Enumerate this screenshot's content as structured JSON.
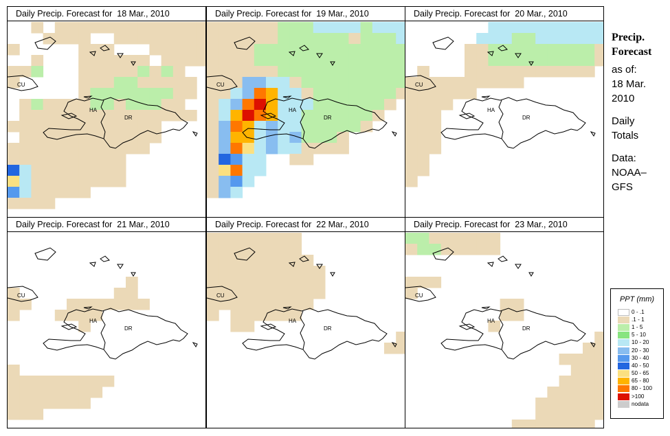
{
  "legend": {
    "title": "PPT (mm)",
    "items": [
      {
        "label": "0 - .1",
        "color": "#ffffff"
      },
      {
        "label": ".1 - 1",
        "color": "#ebd9b7"
      },
      {
        "label": "1 - 5",
        "color": "#bbeeaa"
      },
      {
        "label": "5 - 10",
        "color": "#88e480"
      },
      {
        "label": "10 - 20",
        "color": "#b8e8f4"
      },
      {
        "label": "20 - 30",
        "color": "#88bdf0"
      },
      {
        "label": "30 - 40",
        "color": "#5599ee"
      },
      {
        "label": "40 - 50",
        "color": "#2266e0"
      },
      {
        "label": "50 - 65",
        "color": "#fbe080"
      },
      {
        "label": "65 - 80",
        "color": "#ffb400"
      },
      {
        "label": "80 - 100",
        "color": "#ff7700"
      },
      {
        "label": ">100",
        "color": "#dd1100"
      },
      {
        "label": "nodata",
        "color": "#cccccc"
      }
    ]
  },
  "sidebar": {
    "heading_line1": "Precip.",
    "heading_line2": "Forecast",
    "asof_label": "as of:",
    "asof_date_line1": "18 Mar.",
    "asof_date_line2": "2010",
    "totals_line1": "Daily",
    "totals_line2": "Totals",
    "source_line1": "Data:",
    "source_line2": "NOAA–",
    "source_line3": "GFS"
  },
  "map_labels": {
    "cuba": "CU",
    "haiti": "HA",
    "dominican_republic": "DR"
  },
  "panels": [
    {
      "title": "Daily Precip. Forecast for  18 Mar., 2010",
      "grid": [
        "..1.1111111111111",
        "...1111..11111111",
        "1.....111...11111",
        "..1...111111.1111",
        "112...111112121..",
        "1.....1112211111.",
        "......1222222211.",
        ".12111122122211..",
        ".111111111111111.",
        "1111111111111....",
        ".111111111111....",
        "111111111111.....",
        "1111111111.......",
        "7411111111.......",
        "8411111111.......",
        "6411111..........",
        "1111.............",
        ".................."
      ]
    },
    {
      "title": "Daily Precip. Forecast for  19 Mar., 2010",
      "grid": [
        "11111122244442444",
        "11111122222212224",
        "11112222222222222",
        "11112222222222222",
        "11111122222222222",
        "11155441222222222",
        "1145A9441222222211",
        "145AB94442222221.",
        "149BA9442222221..",
        "15A94544222221...",
        "159945452221.....",
        "15A845441111.....",
        "17644..11........",
        "18A44............",
        "1564.............",
        "154..............",
        "..................",
        ".................."
      ]
    },
    {
      "title": "Daily Precip. Forecast for  20 Mar., 2010",
      "grid": [
        ".......4444444444",
        "......44422444444",
        ".....112222222221",
        ".....112222222221",
        ".1...11111111111.",
        "1111111111.......",
        "111111...........",
        "1111.............",
        "111..............",
        "111..............",
        "111..............",
        "111..............",
        "11...............",
        "11...............",
        "1................",
        "................",
        "..................",
        ".................."
      ]
    },
    {
      "title": "Daily Precip. Forecast for  21 Mar., 2010",
      "grid": [
        ".................",
        ".................",
        ".................",
        ".................",
        "..........1......",
        "1........11......",
        "11...1111111.....",
        "1...1111.........",
        "......1..........",
        ".................",
        ".................",
        ".................",
        "1................",
        "111111111........",
        "11111111.........",
        "1111111..........",
        "111..............",
        ".................."
      ]
    },
    {
      "title": "Daily Precip. Forecast for  22 Mar., 2010",
      "grid": [
        "11111111.........",
        "11111111.........",
        "111111111........",
        "1111111111.......",
        "1111111111.......",
        "1111111111.......",
        "111111111........",
        "1.111111.........",
        "..11.............",
        "................1",
        "...............11",
        ".................",
        ".................",
        ".................",
        ".................",
        ".................",
        "..................",
        ".................."
      ]
    },
    {
      "title": "Daily Precip. Forecast for  23 Mar., 2010",
      "grid": [
        "22111111.........",
        "12211111.........",
        ".................",
        ".................",
        "111..............",
        "1................",
        "........11.......",
        "........11.......",
        ".......1.........",
        "................1",
        "...............11",
        ".............1111",
        "..............111",
        ".............1111",
        "............11111",
        "...........111111",
        "...........111111",
        ".........1111111."
      ]
    }
  ]
}
